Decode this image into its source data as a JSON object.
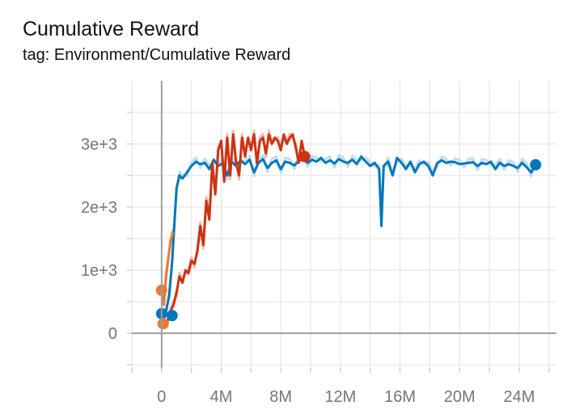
{
  "header": {
    "title": "Cumulative Reward",
    "subtitle": "tag: Environment/Cumulative Reward"
  },
  "chart_data": {
    "type": "line",
    "title": "Cumulative Reward",
    "subtitle": "tag: Environment/Cumulative Reward",
    "xlabel": "",
    "ylabel": "",
    "x_ticks": [
      "0",
      "4M",
      "8M",
      "12M",
      "16M",
      "20M",
      "24M"
    ],
    "x_tick_values": [
      0,
      4000000,
      8000000,
      12000000,
      16000000,
      20000000,
      24000000
    ],
    "y_ticks": [
      "0",
      "1e+3",
      "2e+3",
      "3e+3"
    ],
    "y_tick_values": [
      0,
      1000,
      2000,
      3000
    ],
    "xlim": [
      -2000000,
      26500000
    ],
    "ylim": [
      -550,
      4000
    ],
    "grid": true,
    "colors": {
      "blue": "#0077bb",
      "blue_raw": "#b8dcf0",
      "red": "#cc3311",
      "red_raw": "#f3b8aa",
      "orange": "#ee7733",
      "orange_raw": "#f8c3a3",
      "grid": "#e2e2e2",
      "zero_line": "#9e9e9e"
    },
    "series": [
      {
        "color": "blue",
        "x": [
          0,
          100000,
          300000,
          500000,
          700000,
          900000,
          1000000,
          1200000,
          1400000,
          1700000,
          2000000,
          2300000,
          2600000,
          2900000,
          3200000,
          3500000,
          3800000,
          4100000,
          4400000,
          4700000,
          5000000,
          5300000,
          5600000,
          5900000,
          6200000,
          6500000,
          6800000,
          7100000,
          7400000,
          7700000,
          8000000,
          8300000,
          8600000,
          8900000,
          9200000,
          9500000,
          9800000,
          10100000,
          10400000,
          10700000,
          11000000,
          11300000,
          11600000,
          11900000,
          12200000,
          12500000,
          12800000,
          13100000,
          13400000,
          13700000,
          14000000,
          14300000,
          14600000,
          14750000,
          14900000,
          15200000,
          15500000,
          15800000,
          16100000,
          16400000,
          16700000,
          17000000,
          17300000,
          17600000,
          17900000,
          18200000,
          18500000,
          18800000,
          19100000,
          19400000,
          19700000,
          20000000,
          20300000,
          20600000,
          20900000,
          21200000,
          21500000,
          21800000,
          22100000,
          22400000,
          22700000,
          23000000,
          23300000,
          23600000,
          23900000,
          24200000,
          24500000,
          24800000,
          25100000
        ],
        "y": [
          250,
          200,
          350,
          600,
          1100,
          1900,
          2300,
          2500,
          2450,
          2550,
          2650,
          2720,
          2680,
          2700,
          2600,
          2750,
          2650,
          2700,
          2500,
          2720,
          2650,
          2740,
          2680,
          2750,
          2550,
          2700,
          2760,
          2620,
          2700,
          2740,
          2600,
          2720,
          2700,
          2660,
          2730,
          2760,
          2700,
          2750,
          2720,
          2780,
          2700,
          2740,
          2690,
          2760,
          2720,
          2700,
          2750,
          2680,
          2800,
          2720,
          2650,
          2700,
          2600,
          1700,
          2650,
          2720,
          2500,
          2780,
          2700,
          2600,
          2720,
          2550,
          2680,
          2720,
          2650,
          2500,
          2700,
          2740,
          2700,
          2720,
          2710,
          2680,
          2690,
          2700,
          2710,
          2650,
          2700,
          2680,
          2720,
          2600,
          2700,
          2650,
          2680,
          2650,
          2620,
          2700,
          2630,
          2550,
          2670
        ]
      },
      {
        "color": "red",
        "x": [
          400000,
          600000,
          800000,
          1000000,
          1200000,
          1400000,
          1600000,
          1800000,
          2000000,
          2200000,
          2400000,
          2600000,
          2800000,
          3000000,
          3200000,
          3400000,
          3600000,
          3800000,
          4000000,
          4200000,
          4400000,
          4600000,
          4800000,
          5000000,
          5200000,
          5400000,
          5600000,
          5800000,
          6000000,
          6200000,
          6400000,
          6600000,
          6800000,
          7000000,
          7200000,
          7400000,
          7600000,
          7800000,
          8000000,
          8200000,
          8400000,
          8600000,
          8800000,
          9000000,
          9200000,
          9400000,
          9600000
        ],
        "y": [
          200,
          350,
          450,
          650,
          900,
          800,
          1000,
          950,
          1150,
          1100,
          1300,
          1700,
          1400,
          2100,
          1800,
          2700,
          2200,
          2900,
          3050,
          2400,
          3100,
          2500,
          3150,
          2700,
          2500,
          3100,
          2800,
          3100,
          2900,
          3150,
          2700,
          3050,
          3100,
          2850,
          3150,
          3000,
          3100,
          3050,
          2900,
          3150,
          3000,
          3100,
          3150,
          2950,
          2700,
          3050,
          2800
        ]
      },
      {
        "color": "orange",
        "x": [
          0,
          150000,
          300000,
          450000,
          600000,
          750000
        ],
        "y": [
          680,
          450,
          900,
          1200,
          1450,
          1600
        ]
      }
    ],
    "end_markers": [
      {
        "color": "blue",
        "x": 25100000,
        "y": 2670
      },
      {
        "color": "red",
        "x": 9600000,
        "y": 2800
      },
      {
        "color": "orange",
        "x": 0,
        "y": 680
      },
      {
        "color": "blue",
        "x": 0,
        "y": 310
      },
      {
        "color": "blue",
        "x": 700000,
        "y": 280
      },
      {
        "color": "orange",
        "x": 100000,
        "y": 150
      }
    ]
  }
}
